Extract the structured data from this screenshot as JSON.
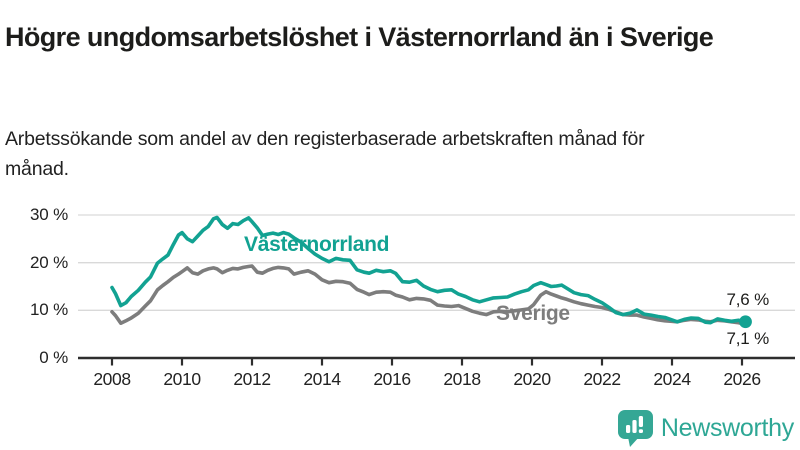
{
  "page": {
    "title": "Högre ungdomsarbetslöshet i Västernorrland än i Sverige",
    "subtitle": "Arbetssökande som andel av den registerbaserade arbetskraften månad för månad.",
    "background_color": "#ffffff",
    "title_color": "#1d1d1b"
  },
  "branding": {
    "logo_text": "Newsworthy",
    "logo_text_color": "#2ea795",
    "logo_icon": "bar-chart-speech-bubble-icon",
    "logo_icon_color": "#35a795"
  },
  "chart_data": {
    "type": "line",
    "unit": "%",
    "grid": "horizontal-only",
    "x_axis": {
      "ticks": [
        2008,
        2010,
        2012,
        2014,
        2016,
        2018,
        2020,
        2022,
        2024,
        2026
      ],
      "labels": [
        "2008",
        "2010",
        "2012",
        "2014",
        "2016",
        "2018",
        "2020",
        "2022",
        "2024",
        "2026"
      ],
      "range": [
        2007.05,
        2027.5
      ]
    },
    "y_axis": {
      "ticks": [
        0,
        10,
        20,
        30
      ],
      "labels": [
        "0 %",
        "10 %",
        "20 %",
        "30 %"
      ],
      "range": [
        0,
        32
      ]
    },
    "x": [
      2008.0,
      2008.1,
      2008.25,
      2008.4,
      2008.55,
      2008.75,
      2008.95,
      2009.1,
      2009.3,
      2009.45,
      2009.6,
      2009.75,
      2009.9,
      2010.0,
      2010.15,
      2010.3,
      2010.45,
      2010.6,
      2010.75,
      2010.9,
      2011.0,
      2011.15,
      2011.3,
      2011.45,
      2011.6,
      2011.75,
      2011.9,
      2012.0,
      2012.15,
      2012.3,
      2012.45,
      2012.6,
      2012.75,
      2012.9,
      2013.05,
      2013.2,
      2013.4,
      2013.6,
      2013.8,
      2014.0,
      2014.2,
      2014.4,
      2014.6,
      2014.8,
      2015.0,
      2015.2,
      2015.35,
      2015.55,
      2015.75,
      2015.95,
      2016.1,
      2016.3,
      2016.5,
      2016.7,
      2016.9,
      2017.1,
      2017.3,
      2017.5,
      2017.7,
      2017.9,
      2018.1,
      2018.3,
      2018.5,
      2018.7,
      2018.9,
      2019.1,
      2019.3,
      2019.5,
      2019.7,
      2019.9,
      2020.05,
      2020.25,
      2020.4,
      2020.55,
      2020.7,
      2020.85,
      2021.0,
      2021.2,
      2021.4,
      2021.6,
      2021.8,
      2022.0,
      2022.2,
      2022.4,
      2022.6,
      2022.8,
      2023.0,
      2023.2,
      2023.4,
      2023.6,
      2023.8,
      2024.0,
      2024.15,
      2024.35,
      2024.55,
      2024.75,
      2024.95,
      2025.1,
      2025.3,
      2025.5,
      2025.7,
      2025.9,
      2026.1
    ],
    "series": [
      {
        "name": "Västernorrland",
        "color": "#12a292",
        "end_label": "7,6 %",
        "end_value": 7.6,
        "has_end_dot": true,
        "values": [
          14.8,
          13.5,
          11.0,
          11.6,
          12.9,
          14.2,
          15.9,
          17.0,
          19.9,
          20.8,
          21.6,
          23.8,
          25.8,
          26.3,
          25.0,
          24.4,
          25.6,
          26.8,
          27.6,
          29.2,
          29.5,
          28.0,
          27.2,
          28.2,
          28.0,
          28.8,
          29.4,
          28.6,
          27.3,
          25.7,
          26.0,
          26.2,
          25.9,
          26.3,
          26.0,
          25.2,
          24.3,
          23.0,
          21.8,
          20.9,
          20.2,
          20.9,
          20.6,
          20.5,
          18.5,
          18.0,
          17.8,
          18.4,
          18.1,
          18.3,
          17.8,
          16.0,
          15.9,
          16.3,
          15.1,
          14.4,
          13.9,
          14.2,
          14.3,
          13.4,
          12.9,
          12.2,
          11.8,
          12.2,
          12.6,
          12.7,
          12.8,
          13.4,
          13.9,
          14.3,
          15.2,
          15.8,
          15.4,
          15.0,
          15.1,
          15.3,
          14.6,
          13.7,
          13.3,
          13.1,
          12.3,
          11.6,
          10.6,
          9.5,
          9.1,
          9.4,
          10.1,
          9.2,
          9.0,
          8.7,
          8.5,
          8.0,
          7.6,
          8.1,
          8.4,
          8.3,
          7.5,
          7.4,
          8.2,
          7.9,
          7.7,
          7.9,
          7.6
        ]
      },
      {
        "name": "Sverige",
        "color": "#7d7d7d",
        "end_label": "7,1 %",
        "end_value": 7.1,
        "has_end_dot": false,
        "values": [
          9.7,
          8.9,
          7.3,
          7.8,
          8.4,
          9.4,
          10.9,
          12.0,
          14.3,
          15.2,
          16.0,
          16.9,
          17.6,
          18.1,
          18.9,
          17.9,
          17.6,
          18.3,
          18.7,
          18.9,
          18.7,
          17.9,
          18.4,
          18.8,
          18.7,
          19.0,
          19.2,
          19.3,
          18.0,
          17.8,
          18.4,
          18.8,
          19.0,
          18.9,
          18.7,
          17.6,
          18.0,
          18.3,
          17.6,
          16.4,
          15.8,
          16.1,
          16.0,
          15.7,
          14.4,
          13.8,
          13.3,
          13.8,
          13.9,
          13.8,
          13.2,
          12.8,
          12.2,
          12.5,
          12.4,
          12.1,
          11.1,
          10.9,
          10.8,
          11.0,
          10.4,
          9.8,
          9.4,
          9.1,
          9.7,
          9.8,
          9.7,
          9.9,
          10.1,
          10.3,
          11.2,
          13.2,
          13.9,
          13.4,
          13.0,
          12.6,
          12.3,
          11.8,
          11.4,
          11.1,
          10.8,
          10.6,
          10.2,
          9.7,
          9.1,
          9.0,
          9.0,
          8.6,
          8.3,
          8.0,
          7.8,
          7.7,
          7.6,
          7.9,
          8.1,
          8.0,
          7.7,
          7.6,
          7.9,
          7.8,
          7.6,
          7.4,
          7.1
        ]
      }
    ],
    "colors": {
      "grid": "#d9d9d9",
      "axis": "#2e2e2e",
      "tick_text": "#222222"
    }
  }
}
